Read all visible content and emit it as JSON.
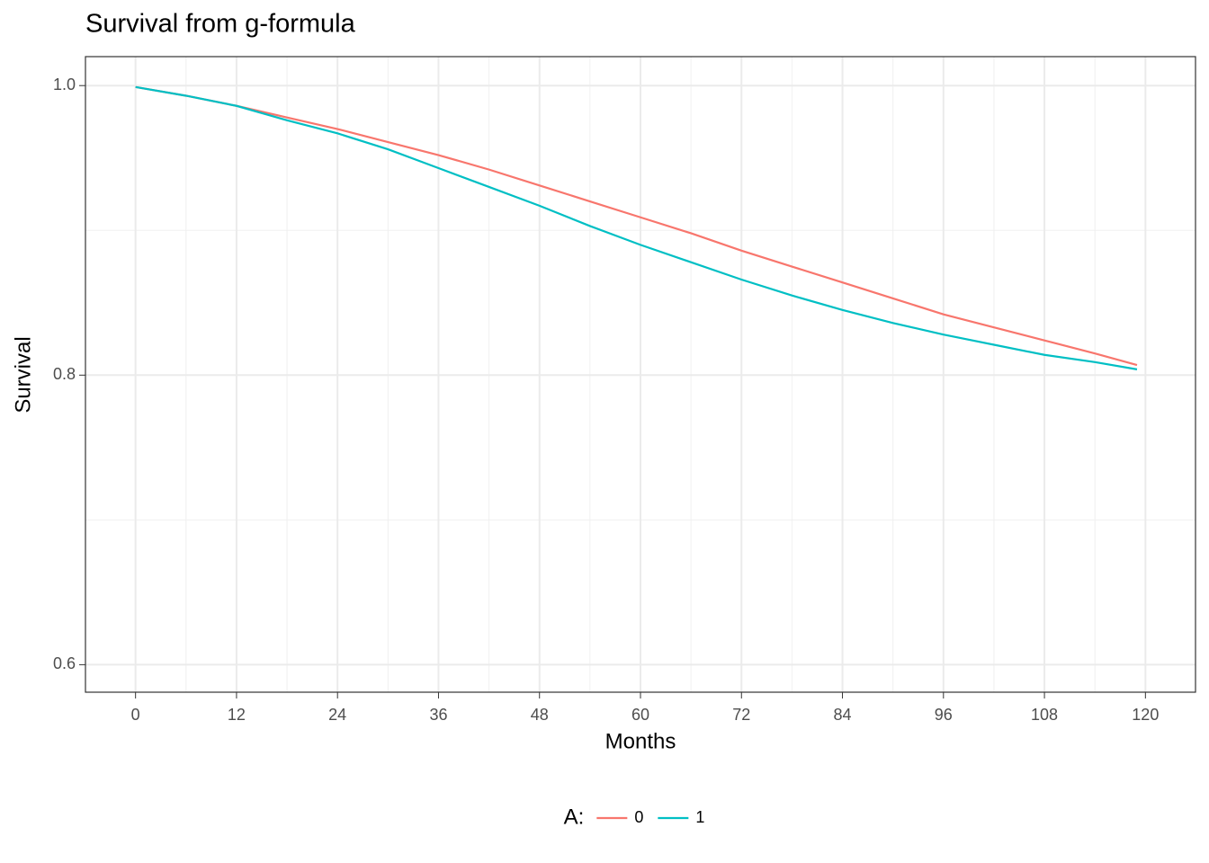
{
  "chart_data": {
    "type": "line",
    "title": "Survival from g-formula",
    "x_label": "Months",
    "y_label": "Survival",
    "x": [
      0,
      6,
      12,
      18,
      24,
      30,
      36,
      42,
      48,
      54,
      60,
      66,
      72,
      78,
      84,
      90,
      96,
      102,
      108,
      114,
      119
    ],
    "series": [
      {
        "name": "0",
        "color": "#f8766d",
        "values": [
          0.999,
          0.993,
          0.986,
          0.978,
          0.97,
          0.961,
          0.952,
          0.942,
          0.931,
          0.92,
          0.909,
          0.898,
          0.886,
          0.875,
          0.864,
          0.853,
          0.842,
          0.833,
          0.824,
          0.815,
          0.807
        ]
      },
      {
        "name": "1",
        "color": "#00bfc4",
        "values": [
          0.999,
          0.993,
          0.986,
          0.976,
          0.967,
          0.956,
          0.943,
          0.93,
          0.917,
          0.903,
          0.89,
          0.878,
          0.866,
          0.855,
          0.845,
          0.836,
          0.828,
          0.821,
          0.814,
          0.809,
          0.804
        ]
      }
    ],
    "legend_title": "A:",
    "legend_position": "bottom",
    "xlim": [
      -5.95,
      125.95
    ],
    "xticks": [
      0,
      12,
      24,
      36,
      48,
      60,
      72,
      84,
      96,
      108,
      120
    ],
    "ylim": [
      0.581,
      1.02
    ],
    "yticks": [
      0.6,
      0.8,
      {
        "value": 1,
        "label": "1.0"
      }
    ],
    "grid": true
  }
}
